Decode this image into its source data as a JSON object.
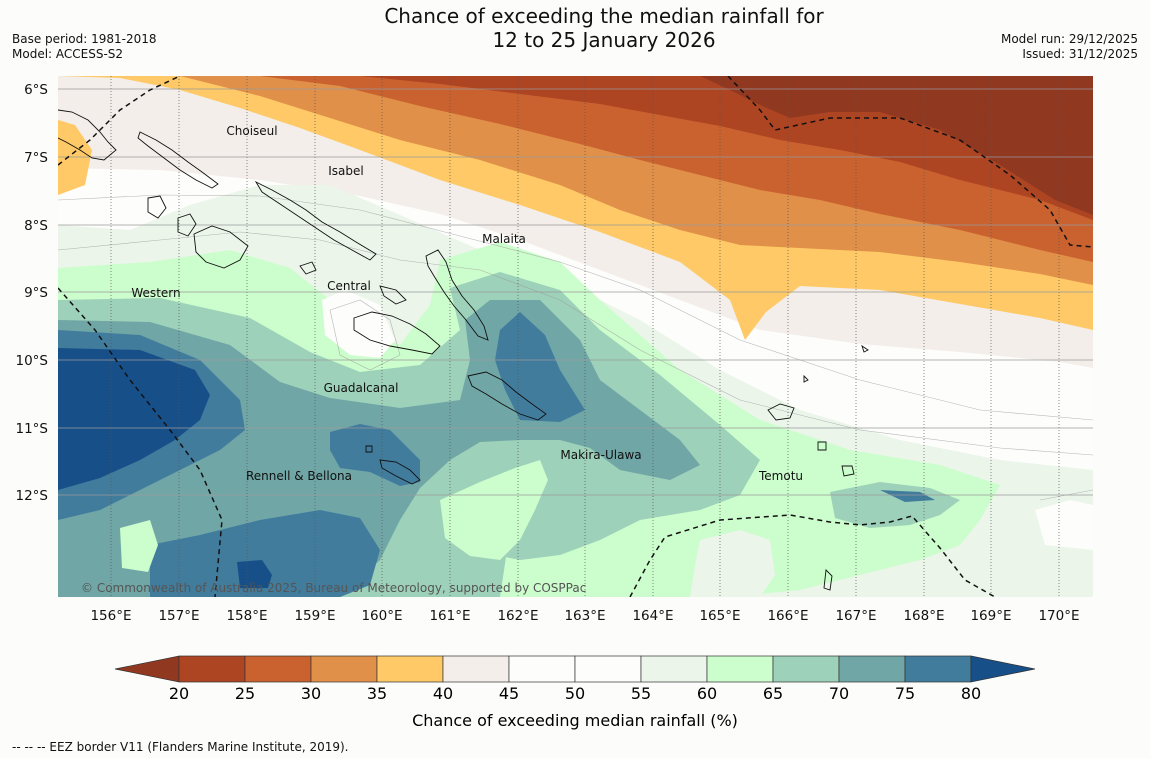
{
  "header": {
    "title_line1": "Chance of exceeding the median rainfall for",
    "title_line2": "12 to 25 January 2026",
    "base_period": "Base period: 1981-2018",
    "model": "Model: ACCESS-S2",
    "model_run": "Model run: 29/12/2025",
    "issued": "Issued: 31/12/2025"
  },
  "map": {
    "lat_labels": [
      "6°S",
      "7°S",
      "8°S",
      "9°S",
      "10°S",
      "11°S",
      "12°S"
    ],
    "lon_labels": [
      "156°E",
      "157°E",
      "158°E",
      "159°E",
      "160°E",
      "161°E",
      "162°E",
      "163°E",
      "164°E",
      "165°E",
      "166°E",
      "167°E",
      "168°E",
      "169°E",
      "170°E"
    ],
    "places": [
      "Choiseul",
      "Isabel",
      "Malaita",
      "Western",
      "Central",
      "Guadalcanal",
      "Makira-Ulawa",
      "Rennell & Bellona",
      "Temotu"
    ],
    "copyright": "© Commonwealth of Australia 2025, Bureau of Meteorology, supported by COSPPac"
  },
  "colorbar": {
    "ticks": [
      "20",
      "25",
      "30",
      "35",
      "40",
      "45",
      "50",
      "55",
      "60",
      "65",
      "70",
      "75",
      "80"
    ],
    "colors": [
      "#ae4522",
      "#ca6230",
      "#e09048",
      "#fec966",
      "#f3eeea",
      "#fdfdfb",
      "#fdfdfb",
      "#ebf5ea",
      "#ccfdcc",
      "#9dd1b9",
      "#70a6a6",
      "#417c9d"
    ],
    "low_color": "#913821",
    "high_color": "#174f89",
    "label": "Chance of exceeding median rainfall (%)"
  },
  "footer": {
    "legend": "-- -- -- EEZ border V11 (Flanders Marine Institute, 2019)."
  }
}
